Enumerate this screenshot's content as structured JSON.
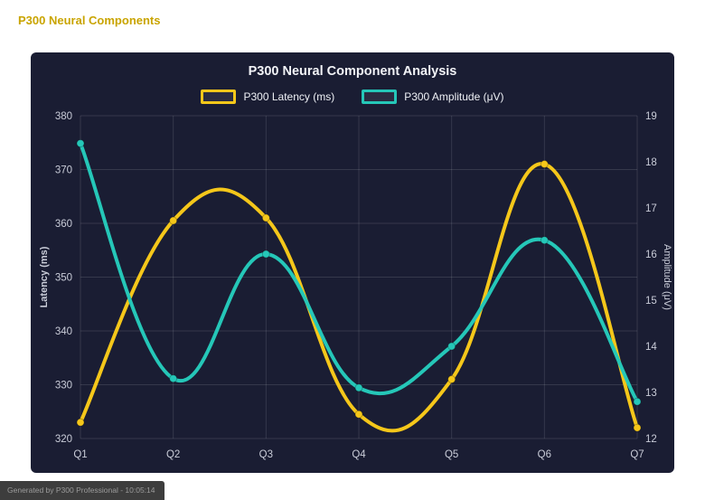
{
  "page": {
    "title": "P300 Neural Components",
    "footer": "Generated by P300 Professional - 10:05:14"
  },
  "colors": {
    "page_bg": "#ffffff",
    "page_title": "#c9a400",
    "card_bg": "#1a1d33",
    "grid": "rgba(255,255,255,0.12)",
    "tick_text": "#c9ccd8",
    "axis_title_text": "#c9ccd8",
    "chart_title_text": "#f2f3f7",
    "latency_line": "#f5c71a",
    "amplitude_line": "#25c7b8",
    "footer_bg": "#3d3d3d",
    "footer_text": "#9b9b9b"
  },
  "chart_data": {
    "type": "line",
    "title": "P300 Neural Component Analysis",
    "categories": [
      "Q1",
      "Q2",
      "Q3",
      "Q4",
      "Q5",
      "Q6",
      "Q7"
    ],
    "series": [
      {
        "name": "P300 Latency (ms)",
        "axis": "left",
        "color": "#f5c71a",
        "values": [
          323,
          360.5,
          361,
          324.5,
          331,
          371,
          322
        ]
      },
      {
        "name": "P300 Amplitude (μV)",
        "axis": "right",
        "color": "#25c7b8",
        "values": [
          18.4,
          13.3,
          16.0,
          13.1,
          14.0,
          16.3,
          12.8
        ]
      }
    ],
    "left_axis": {
      "label": "Latency (ms)",
      "min": 320,
      "max": 380,
      "ticks": [
        320,
        330,
        340,
        350,
        360,
        370,
        380
      ]
    },
    "right_axis": {
      "label": "Amplitude (μV)",
      "min": 12,
      "max": 19,
      "ticks": [
        12,
        13,
        14,
        15,
        16,
        17,
        18,
        19
      ]
    },
    "grid": true,
    "legend_position": "top",
    "smoothing": true
  }
}
